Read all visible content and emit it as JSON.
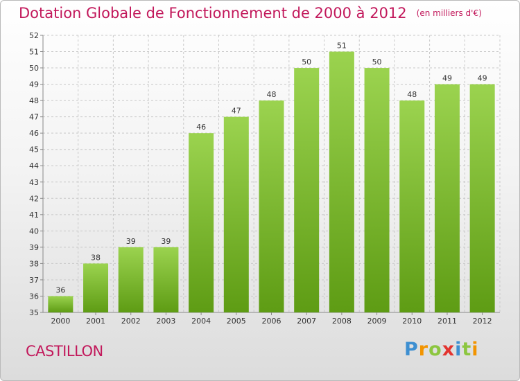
{
  "title": "Dotation Globale de Fonctionnement de 2000 à 2012",
  "unit": "(en milliers d'€)",
  "commune": "CASTILLON",
  "logo": {
    "text": "Proxiti",
    "letters": [
      {
        "ch": "P",
        "color": "#3d8fd1"
      },
      {
        "ch": "r",
        "color": "#f29400"
      },
      {
        "ch": "o",
        "color": "#8cc63f"
      },
      {
        "ch": "x",
        "color": "#e3342f"
      },
      {
        "ch": "i",
        "color": "#3d8fd1"
      },
      {
        "ch": "t",
        "color": "#8cc63f"
      },
      {
        "ch": "i",
        "color": "#f29400"
      }
    ]
  },
  "colors": {
    "title": "#c2185b",
    "bar_top": "#9bd34f",
    "bar_bottom": "#5e9c14",
    "grid": "#c8c8c8",
    "axis": "#888888"
  },
  "chart_data": {
    "type": "bar",
    "title": "Dotation Globale de Fonctionnement de 2000 à 2012",
    "subtitle": "(en milliers d'€)",
    "categories": [
      "2000",
      "2001",
      "2002",
      "2003",
      "2004",
      "2005",
      "2006",
      "2007",
      "2008",
      "2009",
      "2010",
      "2011",
      "2012"
    ],
    "values": [
      36,
      38,
      39,
      39,
      46,
      47,
      48,
      50,
      51,
      50,
      48,
      49,
      49
    ],
    "ylim": [
      35,
      52
    ],
    "yticks": [
      35,
      36,
      37,
      38,
      39,
      40,
      41,
      42,
      43,
      44,
      45,
      46,
      47,
      48,
      49,
      50,
      51,
      52
    ],
    "grid": true,
    "xlabel": "",
    "ylabel": ""
  }
}
